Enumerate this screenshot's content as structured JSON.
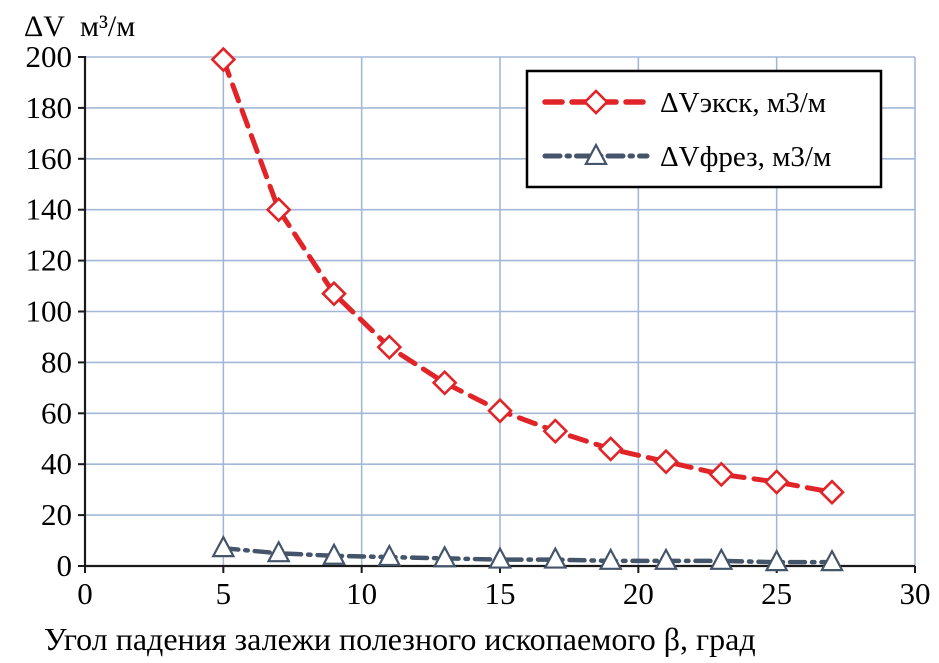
{
  "chart_data": {
    "type": "line",
    "title": "",
    "y_unit_label": "ΔV м³/м",
    "x_axis_label": "Угол падения залежи полезного ископаемого β, град",
    "xlim": [
      0,
      30
    ],
    "ylim": [
      0,
      200
    ],
    "x_ticks": [
      0,
      5,
      10,
      15,
      20,
      25,
      30
    ],
    "y_ticks": [
      0,
      20,
      40,
      60,
      80,
      100,
      120,
      140,
      160,
      180,
      200
    ],
    "grid": true,
    "legend_position": "top-right",
    "x": [
      5,
      7,
      9,
      11,
      13,
      15,
      17,
      19,
      21,
      23,
      25,
      27
    ],
    "series": [
      {
        "name": "ΔVэкск, м3/м",
        "color": "#e02428",
        "marker": "diamond",
        "line_style": "dashed",
        "values": [
          199,
          140,
          107,
          86,
          72,
          61,
          53,
          46,
          41,
          36,
          33,
          29
        ]
      },
      {
        "name": "ΔVфрез, м3/м",
        "color": "#44546a",
        "marker": "triangle",
        "line_style": "dash-dot",
        "values": [
          7,
          5,
          4,
          3.5,
          3,
          2.5,
          2.5,
          2,
          2,
          2,
          1.5,
          1.5
        ]
      }
    ]
  },
  "colors": {
    "grid": "#a3b8d8",
    "axis": "#1a1a1a",
    "background": "#ffffff",
    "legend_border": "#000000",
    "marker_fill": "#ffffff"
  }
}
